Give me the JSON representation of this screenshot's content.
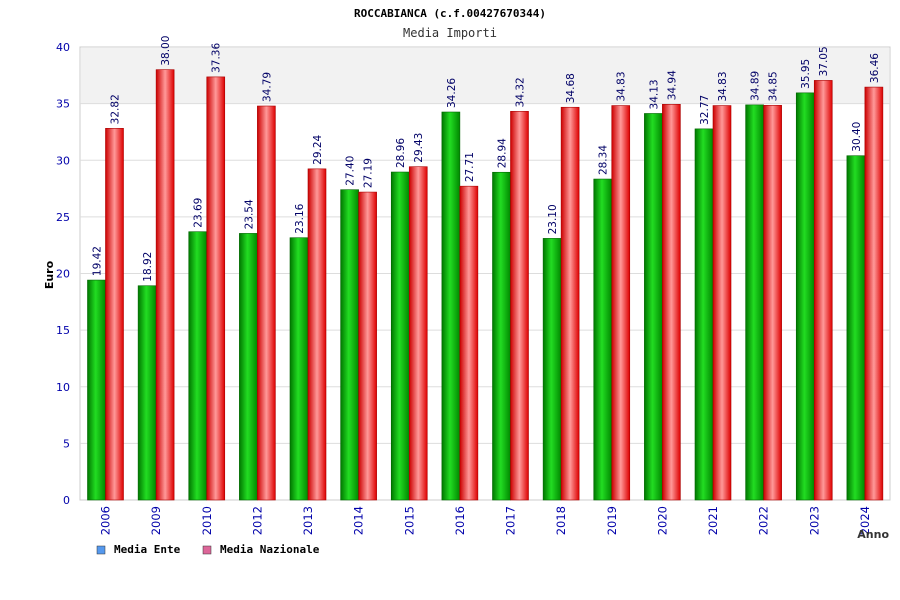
{
  "chart_data": {
    "type": "bar",
    "title": "ROCCABIANCA (c.f.00427670344)",
    "subtitle": "Media Importi",
    "xlabel": "Anno",
    "ylabel": "Euro",
    "ylim": [
      0,
      40
    ],
    "yticks": [
      "0",
      "5",
      "10",
      "15",
      "20",
      "25",
      "30",
      "35",
      "40"
    ],
    "grid": true,
    "legend_position": "bottom-left",
    "categories": [
      "2006",
      "2009",
      "2010",
      "2012",
      "2013",
      "2014",
      "2015",
      "2016",
      "2017",
      "2018",
      "2019",
      "2020",
      "2021",
      "2022",
      "2023",
      "2024"
    ],
    "series": [
      {
        "name": "Media Ente",
        "color": "#00bb00",
        "legend_color": "#5599ee",
        "values": [
          19.42,
          18.92,
          23.69,
          23.54,
          23.16,
          27.4,
          28.96,
          34.26,
          28.94,
          23.1,
          28.34,
          34.13,
          32.77,
          34.89,
          35.95,
          30.4
        ],
        "labels": [
          "19.42",
          "18.92",
          "23.69",
          "23.54",
          "23.16",
          "27.40",
          "28.96",
          "34.26",
          "28.94",
          "23.10",
          "28.34",
          "34.13",
          "32.77",
          "34.89",
          "35.95",
          "30.40"
        ]
      },
      {
        "name": "Media Nazionale",
        "color": "#ee1111",
        "legend_color": "#dd6699",
        "values": [
          32.82,
          38.0,
          37.36,
          34.79,
          29.24,
          27.19,
          29.43,
          27.71,
          34.32,
          34.68,
          34.83,
          34.94,
          34.83,
          34.85,
          37.05,
          36.46
        ],
        "labels": [
          "32.82",
          "38.00",
          "37.36",
          "34.79",
          "29.24",
          "27.19",
          "29.43",
          "27.71",
          "34.32",
          "34.68",
          "34.83",
          "34.94",
          "34.83",
          "34.85",
          "37.05",
          "36.46"
        ]
      }
    ]
  }
}
